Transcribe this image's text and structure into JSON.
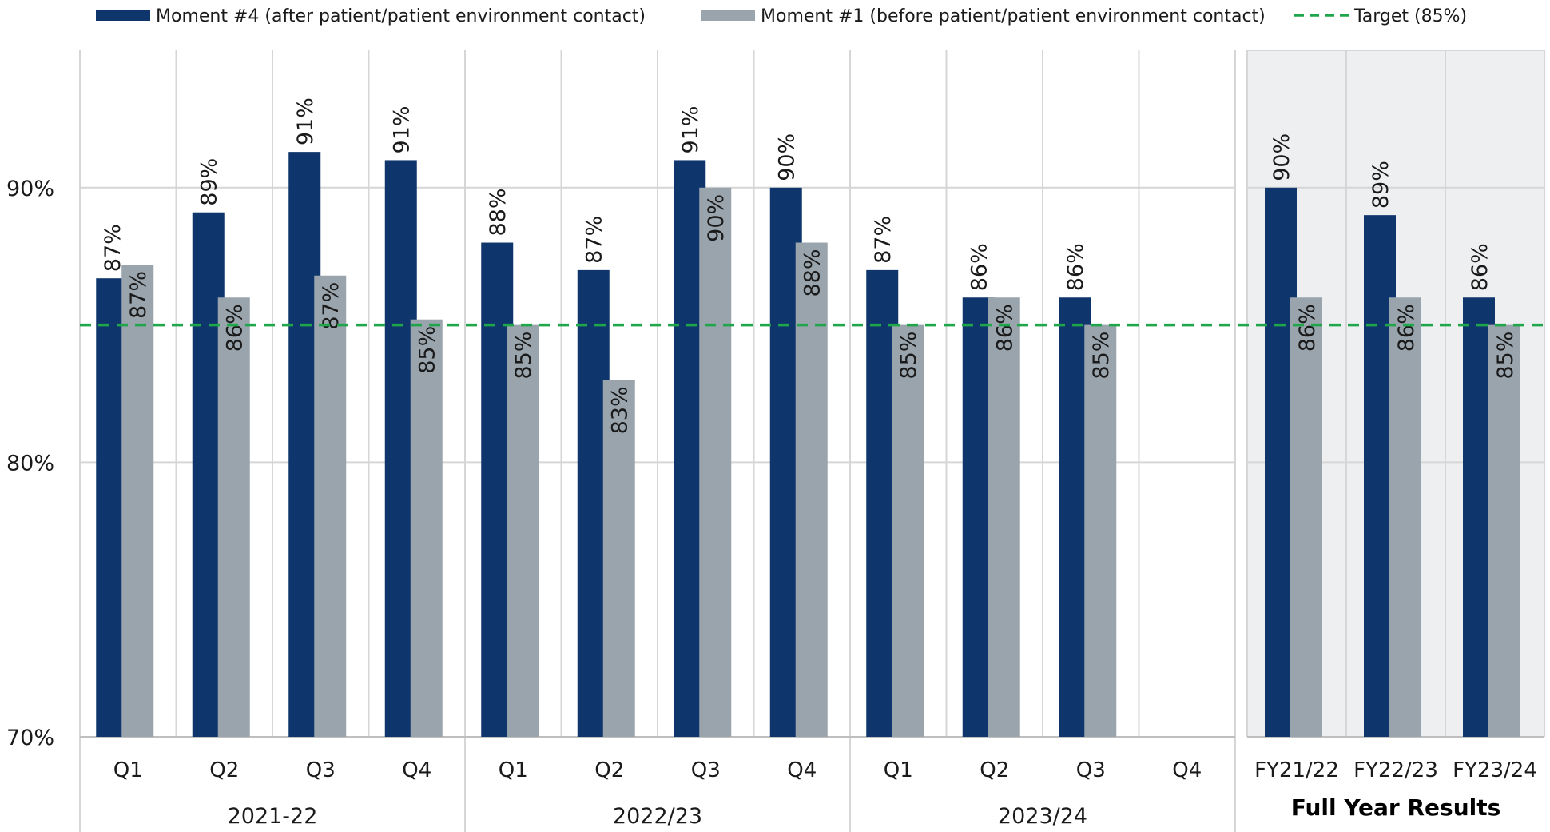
{
  "chart_data": {
    "type": "bar",
    "legend": {
      "placement": "top",
      "items": [
        {
          "label": "Moment #4 (after patient/patient environment contact)",
          "color": "#0f366c",
          "kind": "bar"
        },
        {
          "label": "Moment #1 (before patient/patient environment contact)",
          "color": "#99a4ad",
          "kind": "bar"
        },
        {
          "label": "Target (85%)",
          "color": "#1fa64a",
          "kind": "dashed-line"
        }
      ]
    },
    "ylim": [
      70,
      95
    ],
    "yticks": [
      {
        "value": 70,
        "label": "70%"
      },
      {
        "value": 80,
        "label": "80%"
      },
      {
        "value": 90,
        "label": "90%"
      }
    ],
    "target": {
      "value": 85,
      "color": "#1fa64a"
    },
    "series": [
      {
        "name": "Moment #4 (after patient/patient environment contact)",
        "color": "#0f366c"
      },
      {
        "name": "Moment #1 (before patient/patient environment contact)",
        "color": "#99a4ad"
      }
    ],
    "groups": [
      {
        "label": "2021-22",
        "categories": [
          {
            "label": "Q1",
            "values": [
              86.7,
              87.2
            ],
            "labels": [
              "87%",
              "87%"
            ]
          },
          {
            "label": "Q2",
            "values": [
              89.1,
              86.0
            ],
            "labels": [
              "89%",
              "86%"
            ]
          },
          {
            "label": "Q3",
            "values": [
              91.3,
              86.8
            ],
            "labels": [
              "91%",
              "87%"
            ]
          },
          {
            "label": "Q4",
            "values": [
              91.0,
              85.2
            ],
            "labels": [
              "91%",
              "85%"
            ]
          }
        ]
      },
      {
        "label": "2022/23",
        "categories": [
          {
            "label": "Q1",
            "values": [
              88.0,
              85.0
            ],
            "labels": [
              "88%",
              "85%"
            ]
          },
          {
            "label": "Q2",
            "values": [
              87.0,
              83.0
            ],
            "labels": [
              "87%",
              "83%"
            ]
          },
          {
            "label": "Q3",
            "values": [
              91.0,
              90.0
            ],
            "labels": [
              "91%",
              "90%"
            ]
          },
          {
            "label": "Q4",
            "values": [
              90.0,
              88.0
            ],
            "labels": [
              "90%",
              "88%"
            ]
          }
        ]
      },
      {
        "label": "2023/24",
        "categories": [
          {
            "label": "Q1",
            "values": [
              87.0,
              85.0
            ],
            "labels": [
              "87%",
              "85%"
            ]
          },
          {
            "label": "Q2",
            "values": [
              86.0,
              86.0
            ],
            "labels": [
              "86%",
              "86%"
            ]
          },
          {
            "label": "Q3",
            "values": [
              86.0,
              85.0
            ],
            "labels": [
              "86%",
              "85%"
            ]
          },
          {
            "label": "Q4",
            "values": [
              null,
              null
            ],
            "labels": [
              "",
              ""
            ]
          }
        ]
      }
    ],
    "full_year": {
      "title": "Full Year Results",
      "categories": [
        {
          "label": "FY21/22",
          "values": [
            90.0,
            86.0
          ],
          "labels": [
            "90%",
            "86%"
          ]
        },
        {
          "label": "FY22/23",
          "values": [
            89.0,
            86.0
          ],
          "labels": [
            "89%",
            "86%"
          ]
        },
        {
          "label": "FY23/24",
          "values": [
            86.0,
            85.0
          ],
          "labels": [
            "86%",
            "85%"
          ]
        }
      ]
    },
    "grid": true
  }
}
